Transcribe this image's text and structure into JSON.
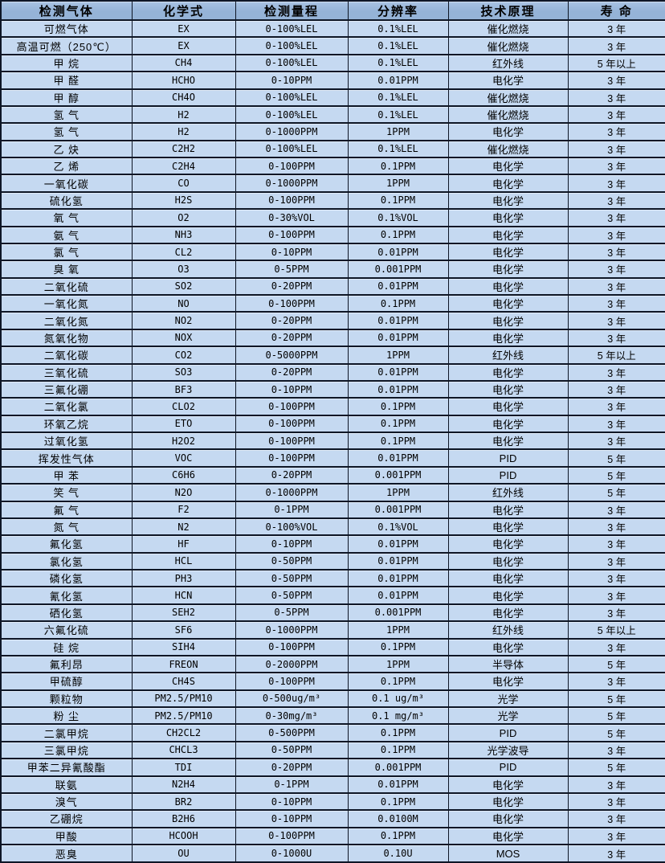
{
  "chart_data": {
    "type": "table",
    "title": "",
    "columns": [
      "检测气体",
      "化学式",
      "检测量程",
      "分辨率",
      "技术原理",
      "寿 命"
    ],
    "rows": [
      [
        "可燃气体",
        "EX",
        "0-100%LEL",
        "0.1%LEL",
        "催化燃烧",
        "3 年"
      ],
      [
        "高温可燃（250℃）",
        "EX",
        "0-100%LEL",
        "0.1%LEL",
        "催化燃烧",
        "3 年"
      ],
      [
        "甲 烷",
        "CH4",
        "0-100%LEL",
        "0.1%LEL",
        "红外线",
        "5 年以上"
      ],
      [
        "甲 醛",
        "HCHO",
        "0-10PPM",
        "0.01PPM",
        "电化学",
        "3 年"
      ],
      [
        "甲 醇",
        "CH4O",
        "0-100%LEL",
        "0.1%LEL",
        "催化燃烧",
        "3 年"
      ],
      [
        "氢 气",
        "H2",
        "0-100%LEL",
        "0.1%LEL",
        "催化燃烧",
        "3 年"
      ],
      [
        "氢 气",
        "H2",
        "0-1000PPM",
        "1PPM",
        "电化学",
        "3 年"
      ],
      [
        "乙 炔",
        "C2H2",
        "0-100%LEL",
        "0.1%LEL",
        "催化燃烧",
        "3 年"
      ],
      [
        "乙 烯",
        "C2H4",
        "0-100PPM",
        "0.1PPM",
        "电化学",
        "3 年"
      ],
      [
        "一氧化碳",
        "CO",
        "0-1000PPM",
        "1PPM",
        "电化学",
        "3 年"
      ],
      [
        "硫化氢",
        "H2S",
        "0-100PPM",
        "0.1PPM",
        "电化学",
        "3 年"
      ],
      [
        "氧 气",
        "O2",
        "0-30%VOL",
        "0.1%VOL",
        "电化学",
        "3 年"
      ],
      [
        "氨 气",
        "NH3",
        "0-100PPM",
        "0.1PPM",
        "电化学",
        "3 年"
      ],
      [
        "氯 气",
        "CL2",
        "0-10PPM",
        "0.01PPM",
        "电化学",
        "3 年"
      ],
      [
        "臭 氧",
        "O3",
        "0-5PPM",
        "0.001PPM",
        "电化学",
        "3 年"
      ],
      [
        "二氧化硫",
        "SO2",
        "0-20PPM",
        "0.01PPM",
        "电化学",
        "3 年"
      ],
      [
        "一氧化氮",
        "NO",
        "0-100PPM",
        "0.1PPM",
        "电化学",
        "3 年"
      ],
      [
        "二氧化氮",
        "NO2",
        "0-20PPM",
        "0.01PPM",
        "电化学",
        "3 年"
      ],
      [
        "氮氧化物",
        "NOX",
        "0-20PPM",
        "0.01PPM",
        "电化学",
        "3 年"
      ],
      [
        "二氧化碳",
        "CO2",
        "0-5000PPM",
        "1PPM",
        "红外线",
        "5 年以上"
      ],
      [
        "三氧化硫",
        "SO3",
        "0-20PPM",
        "0.01PPM",
        "电化学",
        "3 年"
      ],
      [
        "三氟化硼",
        "BF3",
        "0-10PPM",
        "0.01PPM",
        "电化学",
        "3 年"
      ],
      [
        "二氧化氯",
        "CLO2",
        "0-100PPM",
        "0.1PPM",
        "电化学",
        "3 年"
      ],
      [
        "环氧乙烷",
        "ETO",
        "0-100PPM",
        "0.1PPM",
        "电化学",
        "3 年"
      ],
      [
        "过氧化氢",
        "H2O2",
        "0-100PPM",
        "0.1PPM",
        "电化学",
        "3 年"
      ],
      [
        "挥发性气体",
        "VOC",
        "0-100PPM",
        "0.01PPM",
        "PID",
        "5 年"
      ],
      [
        "甲 苯",
        "C6H6",
        "0-20PPM",
        "0.001PPM",
        "PID",
        "5 年"
      ],
      [
        "笑 气",
        "N2O",
        "0-1000PPM",
        "1PPM",
        "红外线",
        "5 年"
      ],
      [
        "氟 气",
        "F2",
        "0-1PPM",
        "0.001PPM",
        "电化学",
        "3 年"
      ],
      [
        "氮 气",
        "N2",
        "0-100%VOL",
        "0.1%VOL",
        "电化学",
        "3 年"
      ],
      [
        "氟化氢",
        "HF",
        "0-10PPM",
        "0.01PPM",
        "电化学",
        "3 年"
      ],
      [
        "氯化氢",
        "HCL",
        "0-50PPM",
        "0.01PPM",
        "电化学",
        "3 年"
      ],
      [
        "磷化氢",
        "PH3",
        "0-50PPM",
        "0.01PPM",
        "电化学",
        "3 年"
      ],
      [
        "氰化氢",
        "HCN",
        "0-50PPM",
        "0.01PPM",
        "电化学",
        "3 年"
      ],
      [
        "硒化氢",
        "SEH2",
        "0-5PPM",
        "0.001PPM",
        "电化学",
        "3 年"
      ],
      [
        "六氟化硫",
        "SF6",
        "0-1000PPM",
        "1PPM",
        "红外线",
        "5 年以上"
      ],
      [
        "硅 烷",
        "SIH4",
        "0-100PPM",
        "0.1PPM",
        "电化学",
        "3 年"
      ],
      [
        "氟利昂",
        "FREON",
        "0-2000PPM",
        "1PPM",
        "半导体",
        "5 年"
      ],
      [
        "甲硫醇",
        "CH4S",
        "0-100PPM",
        "0.1PPM",
        "电化学",
        "3 年"
      ],
      [
        "颗粒物",
        "PM2.5/PM10",
        "0-500ug/m³",
        "0.1 ug/m³",
        "光学",
        "5 年"
      ],
      [
        "粉 尘",
        "PM2.5/PM10",
        "0-30mg/m³",
        "0.1 mg/m³",
        "光学",
        "5 年"
      ],
      [
        "二氯甲烷",
        "CH2CL2",
        "0-500PPM",
        "0.1PPM",
        "PID",
        "5 年"
      ],
      [
        "三氯甲烷",
        "CHCL3",
        "0-50PPM",
        "0.1PPM",
        "光学波导",
        "3 年"
      ],
      [
        "甲苯二异氰酸酯",
        "TDI",
        "0-20PPM",
        "0.001PPM",
        "PID",
        "5 年"
      ],
      [
        "联氨",
        "N2H4",
        "0-1PPM",
        "0.01PPM",
        "电化学",
        "3 年"
      ],
      [
        "溴气",
        "BR2",
        "0-10PPM",
        "0.1PPM",
        "电化学",
        "3 年"
      ],
      [
        "乙硼烷",
        "B2H6",
        "0-10PPM",
        "0.0100M",
        "电化学",
        "3 年"
      ],
      [
        "甲酸",
        "HCOOH",
        "0-100PPM",
        "0.1PPM",
        "电化学",
        "3 年"
      ],
      [
        "恶臭",
        "OU",
        "0-1000U",
        "0.10U",
        "MOS",
        "3 年"
      ]
    ]
  },
  "colors": {
    "header_bg": "#95b3d7",
    "row_bg": "#c5d9f1",
    "border": "#0e1626",
    "text": "#000000"
  }
}
